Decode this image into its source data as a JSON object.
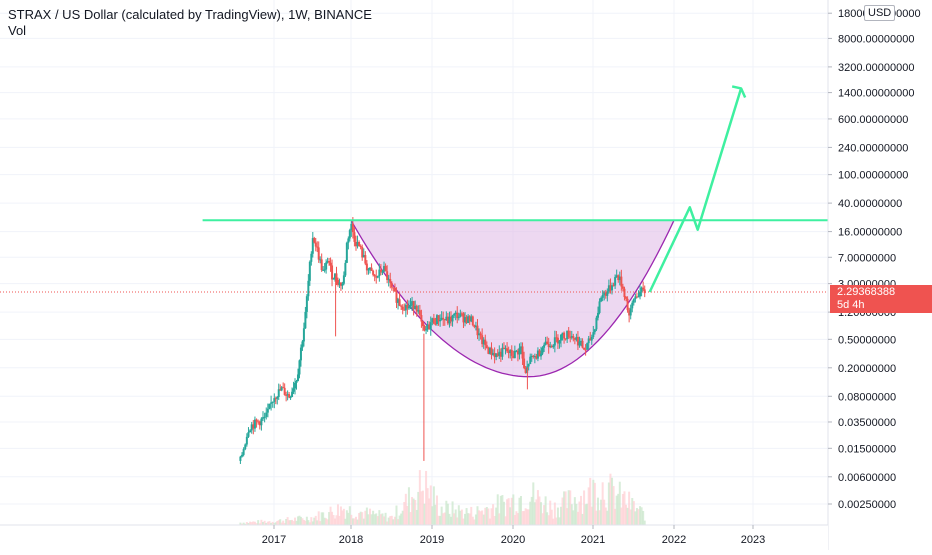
{
  "legend": {
    "title": "STRAX / US Dollar (calculated by TradingView), 1W, BINANCE",
    "sub": "Vol"
  },
  "currency": "USD",
  "price_badge": {
    "value": "2.29368388",
    "countdown": "5d 4h"
  },
  "colors": {
    "up": "#26a69a",
    "down": "#ef5350",
    "cup_fill": "#e1bee7",
    "cup_stroke": "#9c27b0",
    "projection": "#3ef0a0",
    "price_line": "#ef5350"
  },
  "chart_data": {
    "type": "candlestick",
    "title": "STRAX / US Dollar (calculated by TradingView), 1W, BINANCE",
    "y_scale": "log",
    "ylim": [
      0.0017,
      25000
    ],
    "xlim": [
      2016.0,
      2023.9
    ],
    "y_ticks": [
      18000,
      8000,
      3200,
      1400,
      600,
      240,
      100,
      40,
      16,
      7,
      3,
      1.2,
      0.5,
      0.2,
      0.08,
      0.035,
      0.015,
      0.006,
      0.0025
    ],
    "y_tick_labels": [
      "18000.00000000",
      "8000.00000000",
      "3200.00000000",
      "1400.00000000",
      "600.00000000",
      "240.00000000",
      "100.00000000",
      "40.00000000",
      "16.00000000",
      "7.00000000",
      "3.00000000",
      "1.20000000",
      "0.50000000",
      "0.20000000",
      "0.08000000",
      "0.03500000",
      "0.01500000",
      "0.00600000",
      "0.00250000"
    ],
    "x_ticks": [
      2017,
      2018,
      2019,
      2020,
      2021,
      2022,
      2023
    ],
    "x_tick_labels": [
      "2017",
      "2018",
      "2019",
      "2020",
      "2021",
      "2022",
      "2023"
    ],
    "last_price": 2.29368388,
    "price_path": [
      [
        2016.6,
        0.01
      ],
      [
        2016.7,
        0.03
      ],
      [
        2016.9,
        0.04
      ],
      [
        2017.0,
        0.08
      ],
      [
        2017.1,
        0.1
      ],
      [
        2017.2,
        0.08
      ],
      [
        2017.3,
        0.15
      ],
      [
        2017.4,
        0.9
      ],
      [
        2017.45,
        3.5
      ],
      [
        2017.5,
        14
      ],
      [
        2017.55,
        10
      ],
      [
        2017.6,
        6
      ],
      [
        2017.65,
        4
      ],
      [
        2017.7,
        7
      ],
      [
        2017.75,
        4
      ],
      [
        2017.8,
        3.8
      ],
      [
        2017.85,
        3
      ],
      [
        2017.9,
        3
      ],
      [
        2017.95,
        12
      ],
      [
        2018.0,
        20
      ],
      [
        2018.05,
        12
      ],
      [
        2018.1,
        10
      ],
      [
        2018.2,
        5
      ],
      [
        2018.3,
        3.5
      ],
      [
        2018.4,
        5
      ],
      [
        2018.5,
        2.5
      ],
      [
        2018.6,
        1.6
      ],
      [
        2018.7,
        1.4
      ],
      [
        2018.8,
        1.6
      ],
      [
        2018.9,
        0.6
      ],
      [
        2019.0,
        0.9
      ],
      [
        2019.1,
        1.0
      ],
      [
        2019.2,
        0.9
      ],
      [
        2019.3,
        1.1
      ],
      [
        2019.4,
        1.0
      ],
      [
        2019.5,
        0.9
      ],
      [
        2019.6,
        0.5
      ],
      [
        2019.7,
        0.35
      ],
      [
        2019.8,
        0.3
      ],
      [
        2019.9,
        0.35
      ],
      [
        2020.0,
        0.3
      ],
      [
        2020.1,
        0.38
      ],
      [
        2020.15,
        0.15
      ],
      [
        2020.2,
        0.25
      ],
      [
        2020.3,
        0.3
      ],
      [
        2020.4,
        0.45
      ],
      [
        2020.5,
        0.45
      ],
      [
        2020.6,
        0.55
      ],
      [
        2020.7,
        0.6
      ],
      [
        2020.8,
        0.5
      ],
      [
        2020.9,
        0.35
      ],
      [
        2021.0,
        0.6
      ],
      [
        2021.1,
        2.0
      ],
      [
        2021.2,
        2.5
      ],
      [
        2021.3,
        4.0
      ],
      [
        2021.35,
        3.0
      ],
      [
        2021.4,
        2.0
      ],
      [
        2021.45,
        1.0
      ],
      [
        2021.5,
        1.8
      ],
      [
        2021.55,
        2.2
      ],
      [
        2021.6,
        2.3
      ],
      [
        2021.65,
        2.29
      ]
    ],
    "volume_profile": [
      [
        2016.6,
        0.05
      ],
      [
        2017.0,
        0.08
      ],
      [
        2017.5,
        0.15
      ],
      [
        2017.9,
        0.35
      ],
      [
        2018.0,
        0.3
      ],
      [
        2018.5,
        0.15
      ],
      [
        2018.9,
        0.85
      ],
      [
        2019.1,
        0.35
      ],
      [
        2019.5,
        0.25
      ],
      [
        2019.9,
        0.45
      ],
      [
        2020.2,
        0.65
      ],
      [
        2020.5,
        0.35
      ],
      [
        2020.8,
        0.55
      ],
      [
        2021.1,
        0.8
      ],
      [
        2021.4,
        0.5
      ],
      [
        2021.65,
        0.2
      ]
    ],
    "resistance_level": 23,
    "resistance_x": [
      2016.15,
      2023.9
    ],
    "cup": [
      [
        2018.0,
        23
      ],
      [
        2020.2,
        0.15
      ],
      [
        2021.7,
        2.29
      ],
      [
        2022.0,
        23
      ]
    ],
    "projection_path": [
      [
        2021.7,
        2.29
      ],
      [
        2022.2,
        35
      ],
      [
        2022.3,
        17
      ],
      [
        2022.85,
        1600
      ]
    ]
  }
}
